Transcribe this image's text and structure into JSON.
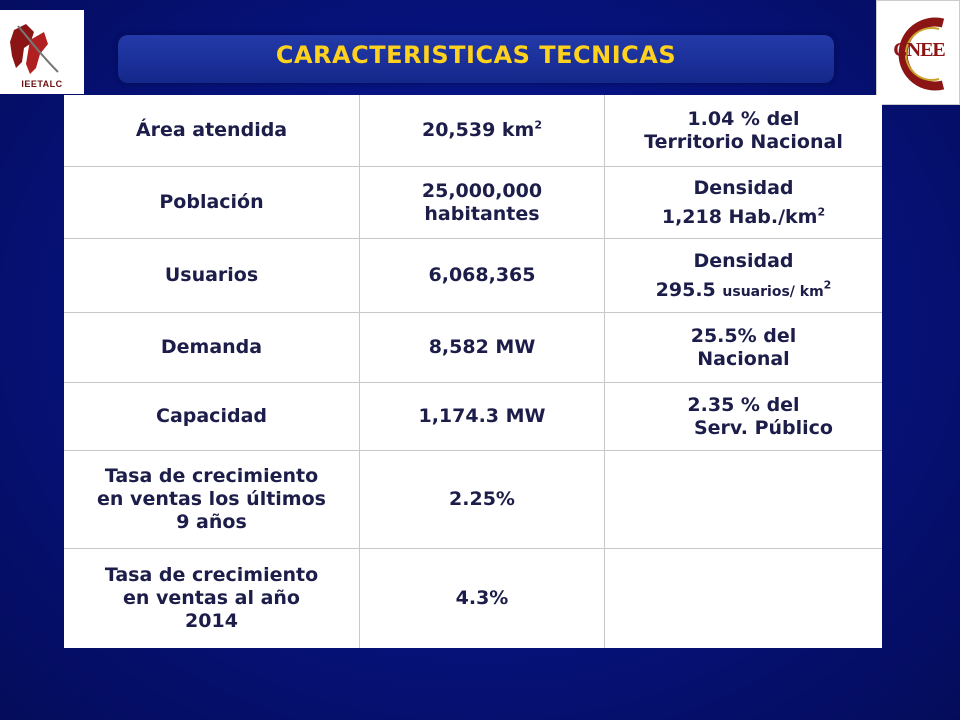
{
  "header": {
    "title": "CARACTERISTICAS  TECNICAS",
    "left_logo_text": "IEETALC",
    "right_logo_text": "CNEE"
  },
  "table": {
    "rows": [
      {
        "label": [
          "Área atendida"
        ],
        "value": [
          "20,539 km"
        ],
        "value_sup": "2",
        "note": [
          "1.04 % del",
          "Territorio Nacional"
        ],
        "note_sup": ""
      },
      {
        "label": [
          "Población"
        ],
        "value": [
          "25,000,000",
          "habitantes"
        ],
        "value_sup": "",
        "note": [
          "Densidad",
          "1,218 Hab./km"
        ],
        "note_sup": "2"
      },
      {
        "label": [
          "Usuarios"
        ],
        "value": [
          "6,068,365"
        ],
        "value_sup": "",
        "note": [
          "Densidad"
        ],
        "note_main": "295.5",
        "note_small": "usuarios/  km",
        "note_sup": "2"
      },
      {
        "label": [
          "Demanda"
        ],
        "value": [
          "8,582 MW"
        ],
        "value_sup": "",
        "note": [
          "25.5% del",
          "Nacional"
        ],
        "note_sup": ""
      },
      {
        "label": [
          "Capacidad"
        ],
        "value": [
          "1,174.3 MW"
        ],
        "value_sup": "",
        "note": [
          "2.35 % del",
          "Serv. Público"
        ],
        "note_sup": ""
      },
      {
        "label": [
          "Tasa de crecimiento",
          "en ventas los últimos",
          "9 años"
        ],
        "value": [
          "2.25%"
        ],
        "value_sup": "",
        "note": [],
        "note_sup": ""
      },
      {
        "label": [
          "Tasa de crecimiento",
          "en ventas al año",
          "2014"
        ],
        "value": [
          "4.3%"
        ],
        "value_sup": "",
        "note": [],
        "note_sup": ""
      }
    ]
  },
  "colors": {
    "background": "#06127a",
    "title": "#ffd21e",
    "table_bg": "#ffffff",
    "text": "#1d1d4a"
  }
}
